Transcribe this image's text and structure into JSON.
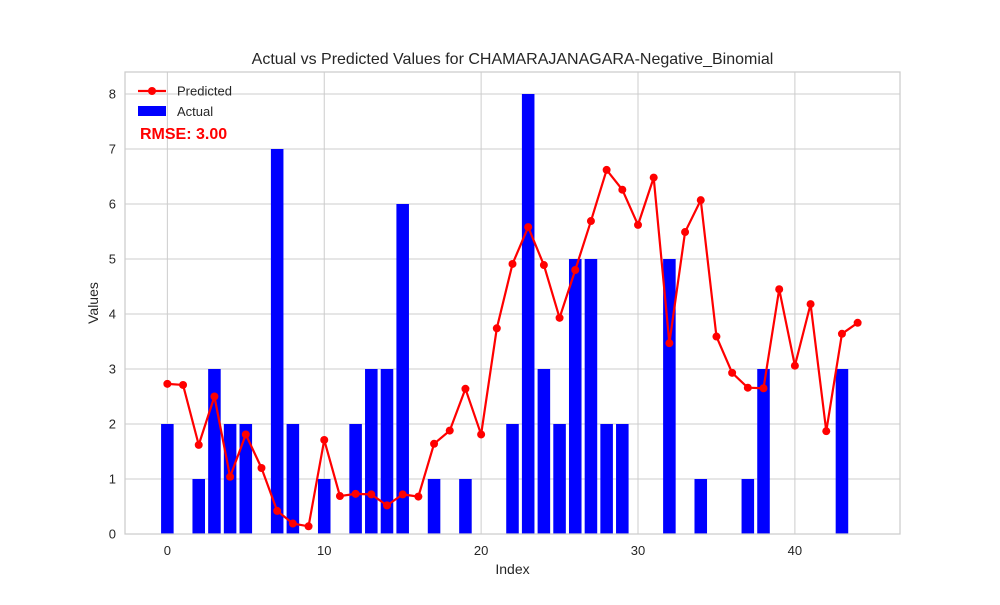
{
  "chart_data": {
    "type": "bar",
    "title": "Actual vs Predicted Values for CHAMARAJANAGARA-Negative_Binomial",
    "xlabel": "Index",
    "ylabel": "Values",
    "xlim": [
      -2.7,
      46.7
    ],
    "ylim": [
      0,
      8.4
    ],
    "xticks": [
      0,
      10,
      20,
      30,
      40
    ],
    "yticks": [
      0,
      1,
      2,
      3,
      4,
      5,
      6,
      7,
      8
    ],
    "grid": true,
    "legend_position": "top-left",
    "x": [
      0,
      1,
      2,
      3,
      4,
      5,
      6,
      7,
      8,
      9,
      10,
      11,
      12,
      13,
      14,
      15,
      16,
      17,
      18,
      19,
      20,
      21,
      22,
      23,
      24,
      25,
      26,
      27,
      28,
      29,
      30,
      31,
      32,
      33,
      34,
      35,
      36,
      37,
      38,
      39,
      40,
      41,
      42,
      43,
      44
    ],
    "series": [
      {
        "name": "Predicted",
        "type": "line",
        "color": "#ff0000",
        "values": [
          2.73,
          2.71,
          1.62,
          2.5,
          1.04,
          1.81,
          1.2,
          0.42,
          0.19,
          0.14,
          1.71,
          0.69,
          0.73,
          0.72,
          0.52,
          0.72,
          0.68,
          1.64,
          1.88,
          2.64,
          1.81,
          3.74,
          4.91,
          5.58,
          4.89,
          3.93,
          4.8,
          5.69,
          6.62,
          6.26,
          5.62,
          6.48,
          3.47,
          5.49,
          6.07,
          3.59,
          2.93,
          2.66,
          2.65,
          4.45,
          3.06,
          4.18,
          1.87,
          3.64,
          3.84
        ]
      },
      {
        "name": "Actual",
        "type": "bar",
        "color": "#0000ff",
        "values": [
          2,
          0,
          1,
          3,
          2,
          2,
          0,
          7,
          2,
          0,
          1,
          0,
          2,
          3,
          3,
          6,
          0,
          1,
          0,
          1,
          0,
          0,
          2,
          8,
          3,
          2,
          5,
          5,
          2,
          2,
          0,
          0,
          5,
          0,
          1,
          0,
          0,
          1,
          3,
          0,
          0,
          0,
          0,
          3,
          0
        ]
      }
    ],
    "annotations": [
      {
        "text": "RMSE: 3.00",
        "color": "#ff0000"
      }
    ]
  }
}
